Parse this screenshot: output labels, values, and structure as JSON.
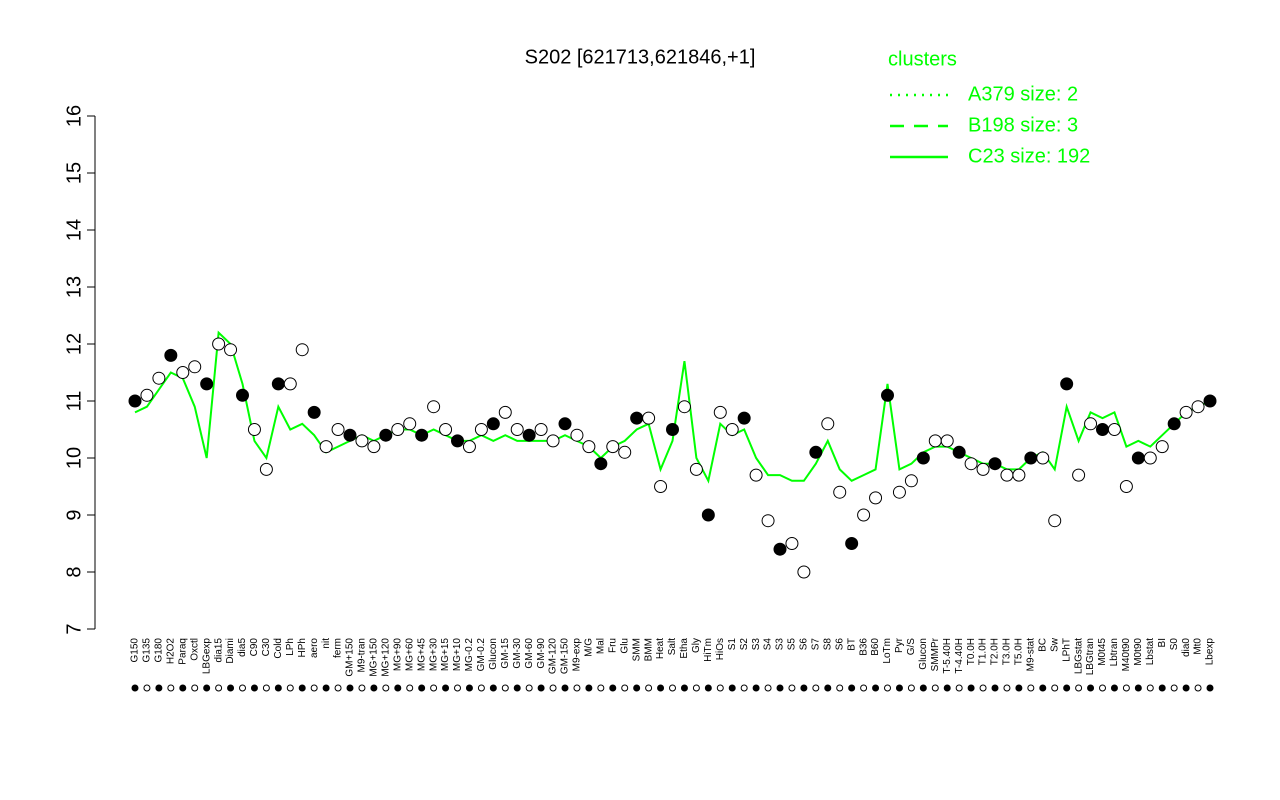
{
  "chart_data": {
    "type": "line",
    "title": "S202 [621713,621846,+1]",
    "categories": [
      "G150",
      "G135",
      "G180",
      "H2O2",
      "Paraq",
      "Oxctl",
      "LBGexp",
      "dia15",
      "Diami",
      "dia5",
      "C90",
      "C30",
      "Cold",
      "LPh",
      "HPh",
      "aero",
      "nit",
      "ferm",
      "GM+150",
      "M9-tran",
      "MG+150",
      "MG+120",
      "MG+90",
      "MG+60",
      "MG+45",
      "MG+30",
      "MG+15",
      "MG+10",
      "MG-0.2",
      "GM-0.2",
      "Glucon",
      "GM-15",
      "GM-30",
      "GM-60",
      "GM-90",
      "GM-120",
      "GM-150",
      "M9-exp",
      "M/G",
      "Mal",
      "Fru",
      "Glu",
      "SMM",
      "BMM",
      "Heat",
      "Salt",
      "Etha",
      "Gly",
      "HiTm",
      "HiOs",
      "S1",
      "S2",
      "S3",
      "S4",
      "S3",
      "S5",
      "S6",
      "S7",
      "S8",
      "S6",
      "BT",
      "B36",
      "B60",
      "LoTm",
      "Pyr",
      "G/S",
      "Glucon",
      "SMMPr",
      "T-5.40H",
      "T-4.40H",
      "T0.0H",
      "T1.0H",
      "T2.0H",
      "T3.0H",
      "T5.0H",
      "M9-stat",
      "BC",
      "Sw",
      "LPhT",
      "LBGstat",
      "LBGtran",
      "M0t45",
      "Lbtran",
      "M40t90",
      "M0t90",
      "Lbstat",
      "BI",
      "S0",
      "dia0",
      "Mt0",
      "Lbexp"
    ],
    "points": {
      "color": "#000000",
      "values": [
        11.0,
        11.1,
        11.4,
        11.8,
        11.5,
        11.6,
        11.3,
        12.0,
        11.9,
        11.1,
        10.5,
        9.8,
        11.3,
        11.3,
        11.9,
        10.8,
        10.2,
        10.5,
        10.4,
        10.3,
        10.2,
        10.4,
        10.5,
        10.6,
        10.4,
        10.9,
        10.5,
        10.3,
        10.2,
        10.5,
        10.6,
        10.8,
        10.5,
        10.4,
        10.5,
        10.3,
        10.6,
        10.4,
        10.2,
        9.9,
        10.2,
        10.1,
        10.7,
        10.7,
        9.5,
        10.5,
        10.9,
        9.8,
        9.0,
        10.8,
        10.5,
        10.7,
        9.7,
        8.9,
        8.4,
        8.5,
        8.0,
        10.1,
        10.6,
        9.4,
        8.5,
        9.0,
        9.3,
        11.1,
        9.4,
        9.6,
        10.0,
        10.3,
        10.3,
        10.1,
        9.9,
        9.8,
        9.9,
        9.7,
        9.7,
        10.0,
        10.0,
        8.9,
        11.3,
        9.7,
        10.6,
        10.5,
        10.5,
        9.5,
        10.0,
        10.0,
        10.2,
        10.6,
        10.8,
        10.9,
        11.0
      ]
    },
    "series": [
      {
        "name": "C23 size: 192",
        "color": "#00ff00",
        "values": [
          10.8,
          10.9,
          11.2,
          11.5,
          11.4,
          10.9,
          10.0,
          12.2,
          12.0,
          11.3,
          10.3,
          10.0,
          10.9,
          10.5,
          10.6,
          10.4,
          10.1,
          10.2,
          10.3,
          10.4,
          10.3,
          10.4,
          10.5,
          10.5,
          10.4,
          10.5,
          10.4,
          10.3,
          10.3,
          10.4,
          10.3,
          10.4,
          10.3,
          10.3,
          10.3,
          10.3,
          10.4,
          10.3,
          10.2,
          10.0,
          10.2,
          10.3,
          10.5,
          10.6,
          9.8,
          10.3,
          11.7,
          10.0,
          9.6,
          10.6,
          10.4,
          10.5,
          10.0,
          9.7,
          9.7,
          9.6,
          9.6,
          9.9,
          10.3,
          9.8,
          9.6,
          9.7,
          9.8,
          11.3,
          9.8,
          9.9,
          10.1,
          10.2,
          10.2,
          10.1,
          10.0,
          9.9,
          9.9,
          9.8,
          9.8,
          10.0,
          10.1,
          9.8,
          10.9,
          10.3,
          10.8,
          10.7,
          10.8,
          10.2,
          10.3,
          10.2,
          10.4,
          10.6,
          10.8,
          10.9,
          11.0
        ]
      }
    ],
    "legend": {
      "title": "clusters",
      "entries": [
        {
          "name": "A379 size: 2",
          "dash": "2,6"
        },
        {
          "name": "B198 size: 3",
          "dash": "14,10"
        },
        {
          "name": "C23 size: 192",
          "dash": "none"
        }
      ]
    },
    "legend_color": "#00ff00",
    "ylim": [
      7,
      16
    ],
    "yticks": [
      7,
      8,
      9,
      10,
      11,
      12,
      13,
      14,
      15,
      16
    ]
  }
}
